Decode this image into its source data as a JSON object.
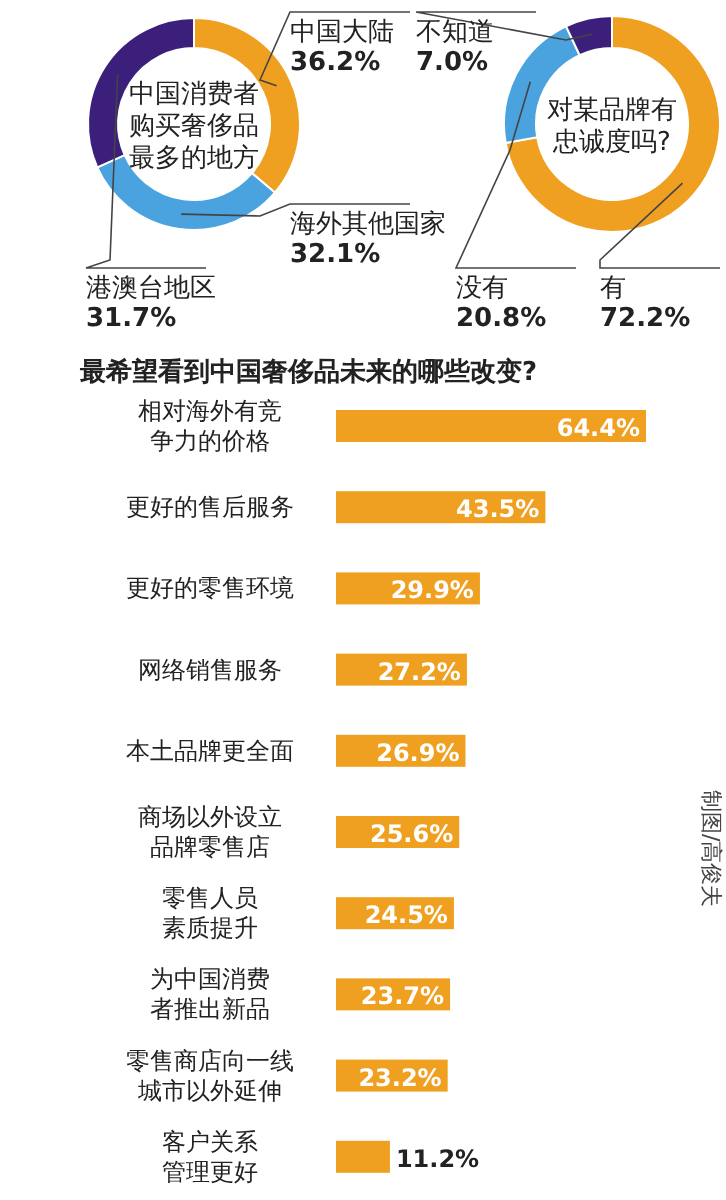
{
  "chart_data": [
    {
      "type": "donut",
      "title": "中国消费者购买奢侈品最多的地方",
      "categories": [
        "中国大陆",
        "海外其他国家",
        "港澳台地区"
      ],
      "values": [
        36.2,
        32.1,
        31.7
      ],
      "colors": [
        "#f0a020",
        "#4aa3df",
        "#3b1f7a"
      ],
      "value_labels": [
        "36.2%",
        "32.1%",
        "31.7%"
      ]
    },
    {
      "type": "donut",
      "title": "对某品牌有忠诚度吗?",
      "categories": [
        "有",
        "没有",
        "不知道"
      ],
      "values": [
        72.2,
        20.8,
        7.0
      ],
      "colors": [
        "#f0a020",
        "#4aa3df",
        "#3b1f7a"
      ],
      "value_labels": [
        "72.2%",
        "20.8%",
        "7.0%"
      ]
    },
    {
      "type": "bar",
      "orientation": "horizontal",
      "title": "最希望看到中国奢侈品未来的哪些改变?",
      "categories": [
        "相对海外有竞争力的价格",
        "更好的售后服务",
        "更好的零售环境",
        "网络销售服务",
        "本土品牌更全面",
        "商场以外设立品牌零售店",
        "零售人员素质提升",
        "为中国消费者推出新品",
        "零售商店向一线城市以外延伸",
        "客户关系管理更好"
      ],
      "values": [
        64.4,
        43.5,
        29.9,
        27.2,
        26.9,
        25.6,
        24.5,
        23.7,
        23.2,
        11.2
      ],
      "color": "#f0a020",
      "value_labels": [
        "64.4%",
        "43.5%",
        "29.9%",
        "27.2%",
        "26.9%",
        "25.6%",
        "24.5%",
        "23.7%",
        "23.2%",
        "11.2%"
      ],
      "annotations": [
        "制图/高俊夫"
      ]
    }
  ]
}
